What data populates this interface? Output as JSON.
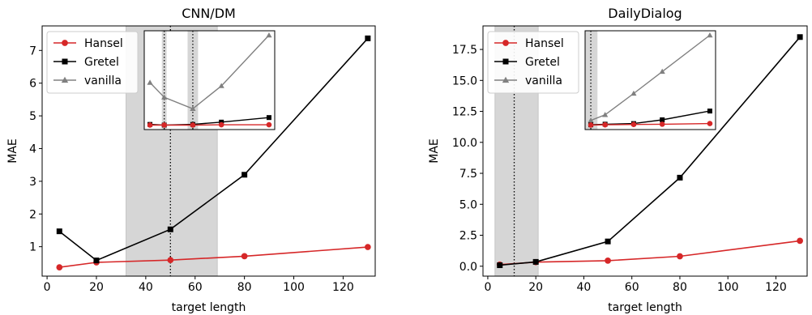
{
  "chart_data": [
    {
      "type": "line",
      "title": "CNN/DM",
      "xlabel": "target length",
      "ylabel": "MAE",
      "xlim": [
        -2,
        133
      ],
      "ylim": [
        0.1,
        7.75
      ],
      "xticks": [
        0,
        20,
        40,
        60,
        80,
        100,
        120
      ],
      "yticks": [
        1,
        2,
        3,
        4,
        5,
        6,
        7
      ],
      "shaded_band": [
        32,
        69
      ],
      "dotted_vline": 50,
      "legend": "top-left",
      "series": [
        {
          "name": "Hansel",
          "color": "#d62728",
          "marker": "circle",
          "x": [
            5,
            20,
            50,
            80,
            130
          ],
          "y": [
            0.37,
            0.52,
            0.59,
            0.71,
            0.99
          ]
        },
        {
          "name": "Gretel",
          "color": "#000000",
          "marker": "square",
          "x": [
            5,
            20,
            50,
            80,
            130
          ],
          "y": [
            1.47,
            0.58,
            1.53,
            3.2,
            7.37
          ]
        },
        {
          "name": "vanilla",
          "color": "#808080",
          "marker": "triangle",
          "x": [],
          "y": []
        }
      ],
      "inset": {
        "x": [
          5,
          20,
          50,
          80,
          130
        ],
        "shaded_bands": [
          [
            17.5,
            22.5
          ],
          [
            44.5,
            55.5
          ]
        ],
        "dotted_vlines": [
          20,
          50
        ],
        "series": [
          {
            "name": "vanilla",
            "y": [
              5.95,
              5.5,
              5.15,
              5.85,
              7.4
            ]
          },
          {
            "name": "Gretel",
            "y": [
              4.67,
              4.65,
              4.67,
              4.74,
              4.88
            ]
          },
          {
            "name": "Hansel",
            "y": [
              4.65,
              4.65,
              4.65,
              4.66,
              4.66
            ]
          }
        ]
      }
    },
    {
      "type": "line",
      "title": "DailyDialog",
      "xlabel": "target length",
      "ylabel": "MAE",
      "xlim": [
        -2,
        133
      ],
      "ylim": [
        -0.8,
        19.4
      ],
      "xticks": [
        0,
        20,
        40,
        60,
        80,
        100,
        120
      ],
      "yticks": [
        0.0,
        2.5,
        5.0,
        7.5,
        10.0,
        12.5,
        15.0,
        17.5
      ],
      "ytick_labels": [
        "0.0",
        "2.5",
        "5.0",
        "7.5",
        "10.0",
        "12.5",
        "15.0",
        "17.5"
      ],
      "shaded_band": [
        3,
        21
      ],
      "dotted_vline": 11,
      "legend": "top-left",
      "series": [
        {
          "name": "Hansel",
          "color": "#d62728",
          "marker": "circle",
          "x": [
            5,
            20,
            50,
            80,
            130
          ],
          "y": [
            0.13,
            0.33,
            0.45,
            0.8,
            2.05
          ]
        },
        {
          "name": "Gretel",
          "color": "#000000",
          "marker": "square",
          "x": [
            5,
            20,
            50,
            80,
            130
          ],
          "y": [
            0.08,
            0.35,
            2.0,
            7.15,
            18.5
          ]
        },
        {
          "name": "vanilla",
          "color": "#808080",
          "marker": "triangle",
          "x": [],
          "y": []
        }
      ],
      "inset": {
        "x": [
          5,
          20,
          50,
          80,
          130
        ],
        "shaded_bands": [
          [
            -2,
            12
          ]
        ],
        "dotted_vlines": [
          5
        ],
        "series": [
          {
            "name": "vanilla",
            "y": [
              11.7,
              12.15,
              13.85,
              15.6,
              18.5
            ]
          },
          {
            "name": "Gretel",
            "y": [
              11.35,
              11.4,
              11.45,
              11.75,
              12.45
            ]
          },
          {
            "name": "Hansel",
            "y": [
              11.33,
              11.35,
              11.38,
              11.4,
              11.45
            ]
          }
        ]
      }
    }
  ]
}
